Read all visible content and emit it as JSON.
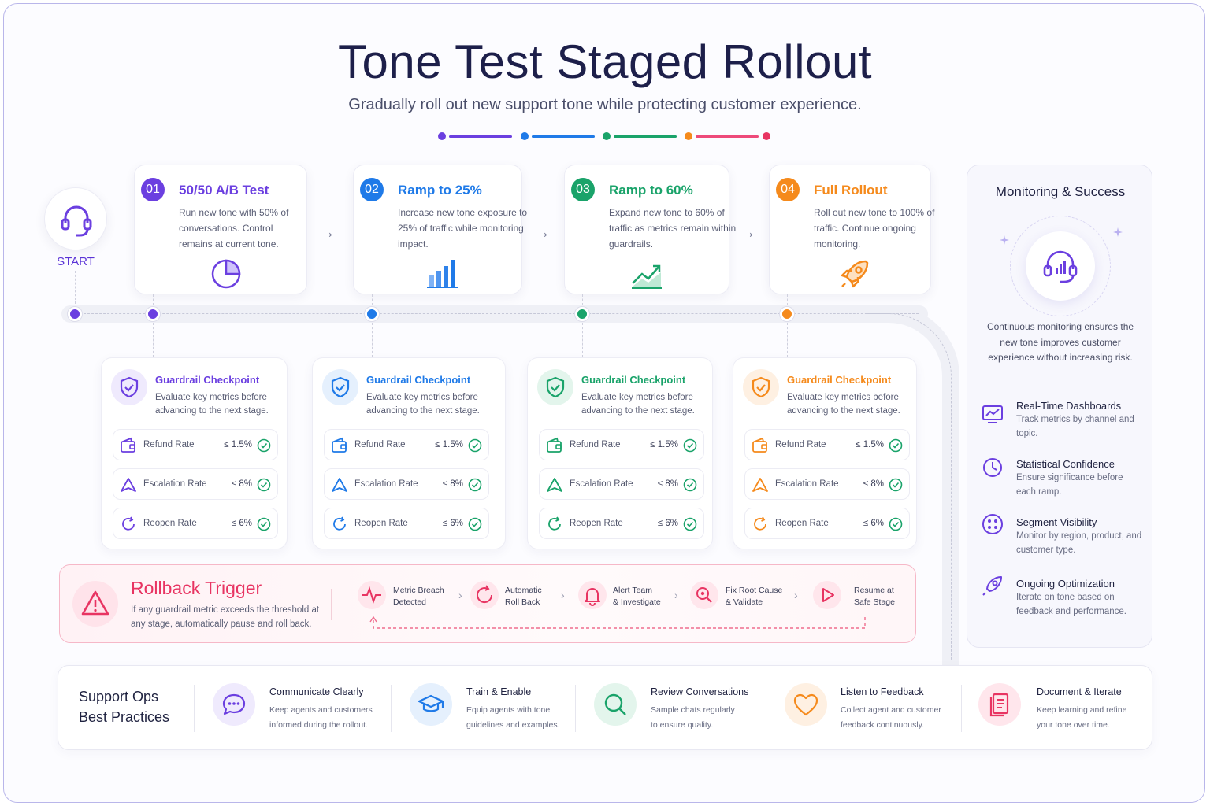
{
  "header": {
    "title": "Tone Test Staged Rollout",
    "subtitle": "Gradually roll out new support tone while protecting customer experience."
  },
  "colors": {
    "purple": "#6b3fe0",
    "blue": "#1f7ae8",
    "green": "#1aa36a",
    "orange": "#f58a1c",
    "pink": "#e83462"
  },
  "start": {
    "label": "START",
    "icon": "headset-icon"
  },
  "stages": [
    {
      "num": "01",
      "title": "50/50 A/B Test",
      "desc": "Run new tone with 50% of conversations. Control remains at current tone.",
      "icon": "pie-chart-icon"
    },
    {
      "num": "02",
      "title": "Ramp to 25%",
      "desc": "Increase new tone exposure to 25% of traffic while monitoring impact.",
      "icon": "bar-chart-icon"
    },
    {
      "num": "03",
      "title": "Ramp to 60%",
      "desc": "Expand new tone to 60% of traffic as metrics remain within guardrails.",
      "icon": "trend-up-icon"
    },
    {
      "num": "04",
      "title": "Full Rollout",
      "desc": "Roll out new tone to 100% of traffic. Continue ongoing monitoring.",
      "icon": "rocket-icon"
    }
  ],
  "guardrail": {
    "title": "Guardrail Checkpoint",
    "desc": "Evaluate key metrics before advancing to the next stage.",
    "metrics": [
      {
        "label": "Refund Rate",
        "value": "≤ 1.5%",
        "icon": "wallet-icon"
      },
      {
        "label": "Escalation Rate",
        "value": "≤ 8%",
        "icon": "escalation-icon"
      },
      {
        "label": "Reopen Rate",
        "value": "≤ 6%",
        "icon": "reopen-icon"
      }
    ]
  },
  "rollback": {
    "title": "Rollback Trigger",
    "desc": "If any guardrail metric exceeds the threshold at any stage, automatically pause and roll back.",
    "steps": [
      {
        "label1": "Metric Breach",
        "label2": "Detected",
        "icon": "pulse-icon"
      },
      {
        "label1": "Automatic",
        "label2": "Roll Back",
        "icon": "rollback-icon"
      },
      {
        "label1": "Alert Team",
        "label2": "& Investigate",
        "icon": "bell-icon"
      },
      {
        "label1": "Fix Root Cause",
        "label2": "& Validate",
        "icon": "search-bug-icon"
      },
      {
        "label1": "Resume at",
        "label2": "Safe Stage",
        "icon": "play-icon"
      }
    ]
  },
  "monitoring": {
    "title": "Monitoring & Success",
    "desc": "Continuous monitoring ensures the new tone improves customer experience without increasing risk.",
    "items": [
      {
        "title": "Real-Time Dashboards",
        "desc": "Track metrics by channel and topic.",
        "icon": "dashboard-icon"
      },
      {
        "title": "Statistical Confidence",
        "desc": "Ensure significance before each ramp.",
        "icon": "gauge-icon"
      },
      {
        "title": "Segment Visibility",
        "desc": "Monitor by region, product, and customer type.",
        "icon": "segments-icon"
      },
      {
        "title": "Ongoing Optimization",
        "desc": "Iterate on tone based on feedback and performance.",
        "icon": "rocket-outline-icon"
      }
    ]
  },
  "best_practices": {
    "title1": "Support Ops",
    "title2": "Best Practices",
    "items": [
      {
        "title": "Communicate Clearly",
        "desc1": "Keep agents and customers",
        "desc2": "informed during the rollout.",
        "icon": "chat-icon"
      },
      {
        "title": "Train & Enable",
        "desc1": "Equip agents with tone",
        "desc2": "guidelines and examples.",
        "icon": "graduation-cap-icon"
      },
      {
        "title": "Review Conversations",
        "desc1": "Sample chats regularly",
        "desc2": "to ensure quality.",
        "icon": "magnifier-icon"
      },
      {
        "title": "Listen to Feedback",
        "desc1": "Collect agent and customer",
        "desc2": "feedback continuously.",
        "icon": "heart-icon"
      },
      {
        "title": "Document & Iterate",
        "desc1": "Keep learning and refine",
        "desc2": "your tone over time.",
        "icon": "document-icon"
      }
    ]
  }
}
